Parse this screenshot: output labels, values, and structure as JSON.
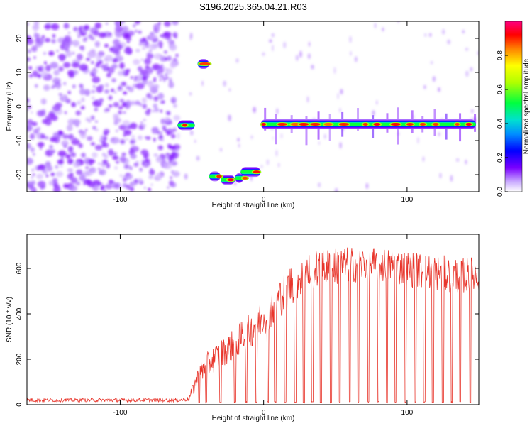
{
  "title": "S196.2025.365.04.21.R03",
  "colors": {
    "frame": "#000000",
    "snr_line": "#e8352b",
    "noise": "#8a2be2",
    "colormap": [
      "#ffffff",
      "#b07cff",
      "#7a00ff",
      "#0000ff",
      "#00a0ff",
      "#00e0d0",
      "#00ff40",
      "#c0ff00",
      "#ffff00",
      "#ff8000",
      "#ff0000",
      "#ff0080"
    ]
  },
  "chart_data": [
    {
      "type": "heatmap",
      "name": "spectrogram",
      "xlabel": "Height of straight line (km)",
      "ylabel": "Frequency (Hz)",
      "xlim": [
        -165,
        150
      ],
      "ylim": [
        -25,
        25
      ],
      "xticks": [
        -100,
        0,
        100
      ],
      "xtick_labels": [
        "-100",
        "0",
        "100"
      ],
      "yticks": [
        -20,
        -10,
        0,
        10,
        20
      ],
      "ytick_labels": [
        "-20",
        "-10",
        "0",
        "10",
        "20"
      ],
      "noise_region": [
        -165,
        -60
      ],
      "segments": [
        {
          "x0": -60,
          "x1": -48,
          "f": -5.5,
          "peak": 0.85
        },
        {
          "x0": -46,
          "x1": -38,
          "f": 12.5,
          "peak": 0.95
        },
        {
          "x0": -38,
          "x1": -30,
          "f": -20.5,
          "peak": 0.65
        },
        {
          "x0": -30,
          "x1": -20,
          "f": -21.5,
          "peak": 0.55
        },
        {
          "x0": -20,
          "x1": -14,
          "f": -21.0,
          "peak": 0.6
        },
        {
          "x0": -16,
          "x1": -2,
          "f": -19.2,
          "peak": 0.7
        },
        {
          "x0": -2,
          "x1": 148,
          "f": -5.2,
          "peak": 0.9
        }
      ],
      "hot_spots": [
        -41,
        -55,
        -31,
        -23,
        -13,
        -5,
        0,
        13,
        22,
        28,
        36,
        45,
        56,
        71,
        79,
        92,
        102,
        111,
        120,
        135,
        143
      ],
      "colorbar": {
        "label": "Normalized spectral amplitude",
        "ticks": [
          0.0,
          0.2,
          0.4,
          0.6,
          0.8
        ],
        "tick_labels": [
          "0.0",
          "0.2",
          "0.4",
          "0.6",
          "0.8"
        ],
        "range": [
          0,
          1
        ]
      }
    },
    {
      "type": "line",
      "name": "snr",
      "xlabel": "Height of straight line (km)",
      "ylabel": "SNR (10 * v/v)",
      "xlim": [
        -165,
        150
      ],
      "ylim": [
        0,
        750
      ],
      "xticks": [
        -100,
        0,
        100
      ],
      "xtick_labels": [
        "-100",
        "0",
        "100"
      ],
      "yticks": [
        0,
        200,
        400,
        600
      ],
      "ytick_labels": [
        "0",
        "200",
        "400",
        "600"
      ],
      "series": [
        {
          "name": "SNR",
          "x": [
            -165,
            -150,
            -120,
            -100,
            -80,
            -60,
            -52,
            -48,
            -44,
            -40,
            -35,
            -30,
            -25,
            -20,
            -15,
            -10,
            -5,
            0,
            5,
            10,
            15,
            20,
            25,
            30,
            35,
            40,
            50,
            60,
            70,
            80,
            90,
            100,
            110,
            120,
            130,
            140,
            150
          ],
          "baseline": [
            20,
            20,
            20,
            20,
            20,
            20,
            25,
            90,
            140,
            170,
            200,
            225,
            245,
            270,
            300,
            320,
            360,
            390,
            420,
            460,
            500,
            535,
            560,
            580,
            590,
            600,
            610,
            615,
            620,
            615,
            610,
            600,
            590,
            580,
            575,
            570,
            570
          ],
          "noise_amp": [
            8,
            8,
            8,
            8,
            8,
            8,
            10,
            40,
            50,
            55,
            60,
            60,
            65,
            70,
            75,
            80,
            85,
            85,
            90,
            90,
            95,
            95,
            90,
            90,
            85,
            85,
            85,
            80,
            80,
            80,
            80,
            80,
            80,
            80,
            80,
            80,
            80
          ]
        }
      ],
      "dropouts": [
        -45,
        -40,
        -30,
        -20,
        -12,
        -5,
        3,
        8,
        15,
        22,
        28,
        34,
        40,
        47,
        53,
        60,
        66,
        73,
        80,
        86,
        92,
        99,
        106,
        112,
        118,
        125,
        131,
        137,
        144
      ]
    }
  ]
}
